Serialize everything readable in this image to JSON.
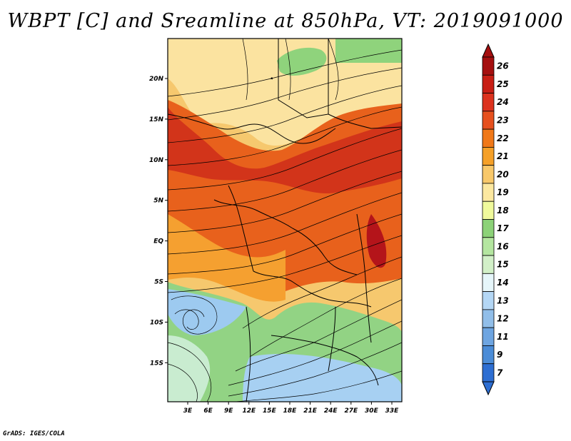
{
  "title": "WBPT [C] and Sreamline at 850hPa, VT: 2019091000",
  "credit": "GrADS: IGES/COLA",
  "map": {
    "variable": "Wet-bulb potential temperature with streamlines",
    "level": "850hPa",
    "lat_labels": [
      "20N",
      "15N",
      "10N",
      "5N",
      "EQ",
      "5S",
      "10S",
      "15S"
    ],
    "lon_labels": [
      "3E",
      "6E",
      "9E",
      "12E",
      "15E",
      "18E",
      "21E",
      "24E",
      "27E",
      "30E",
      "33E"
    ]
  },
  "colorbar": {
    "labels": [
      "26",
      "25",
      "24",
      "23",
      "22",
      "21",
      "20",
      "19",
      "18",
      "17",
      "16",
      "15",
      "14",
      "13",
      "12",
      "11",
      "9",
      "7"
    ],
    "colors": [
      "#a50f0f",
      "#c81e14",
      "#dc321e",
      "#e6501e",
      "#f07818",
      "#f5a028",
      "#f8c86a",
      "#fce8a0",
      "#f0fa9c",
      "#8cd278",
      "#b4e6a0",
      "#d2f0c8",
      "#e6f6fa",
      "#b4d7f5",
      "#91bee9",
      "#6ea5e1",
      "#4b8cd7",
      "#2d6ed2"
    ]
  }
}
